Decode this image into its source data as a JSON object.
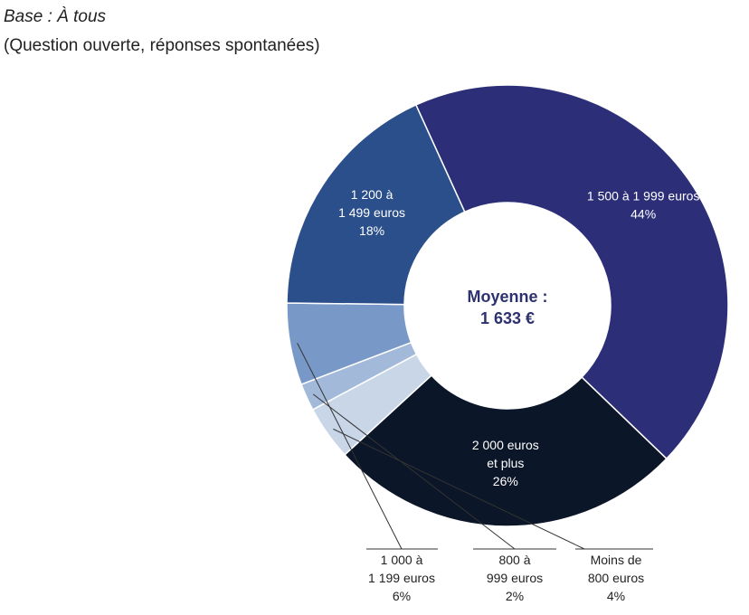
{
  "header": {
    "base": "Base : À tous",
    "note": "(Question ouverte, réponses spontanées)"
  },
  "chart_data": {
    "type": "pie",
    "donut": true,
    "center_label": [
      "Moyenne :",
      "1 633 €"
    ],
    "slices": [
      {
        "label": [
          "1 500 à 1 999 euros"
        ],
        "value": 44,
        "display": "44%",
        "color": "#2c2f78",
        "label_inside": true
      },
      {
        "label": [
          "2 000 euros",
          "et plus"
        ],
        "value": 26,
        "display": "26%",
        "color": "#0b1628",
        "label_inside": true
      },
      {
        "label": [
          "Moins de",
          "800 euros"
        ],
        "value": 4,
        "display": "4%",
        "color": "#c8d6e8",
        "label_inside": false
      },
      {
        "label": [
          "800 à",
          "999 euros"
        ],
        "value": 2,
        "display": "2%",
        "color": "#a3b9da",
        "label_inside": false
      },
      {
        "label": [
          "1 000 à",
          "1 199 euros"
        ],
        "value": 6,
        "display": "6%",
        "color": "#7899c8",
        "label_inside": false
      },
      {
        "label": [
          "1 200 à",
          "1 499 euros"
        ],
        "value": 18,
        "display": "18%",
        "color": "#2b4f8b",
        "label_inside": true
      }
    ]
  }
}
